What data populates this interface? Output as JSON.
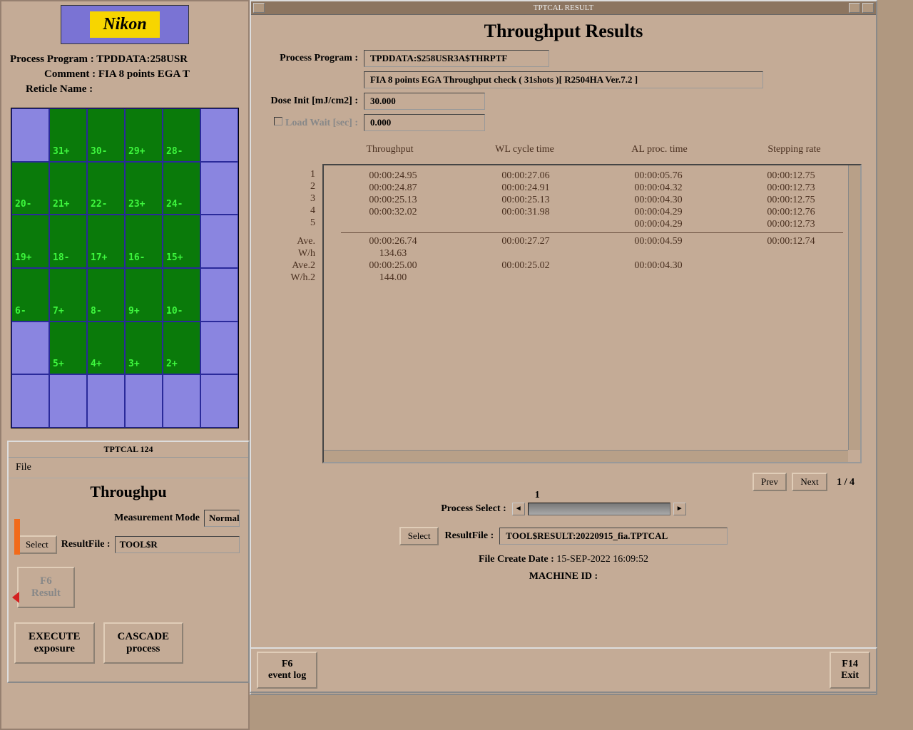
{
  "logo": "Nikon",
  "left": {
    "process_program_label": "Process Program :",
    "process_program_value": "TPDDATA:258USR",
    "comment_label": "Comment :",
    "comment_value": "FIA 8 points EGA T",
    "reticle_label": "Reticle Name :",
    "reticle_value": ""
  },
  "wafer": {
    "rows": [
      [
        "",
        "31+",
        "30-",
        "29+",
        "28-",
        ""
      ],
      [
        "20-",
        "21+",
        "22-",
        "23+",
        "24-",
        ""
      ],
      [
        "19+",
        "18-",
        "17+",
        "16-",
        "15+",
        ""
      ],
      [
        "6-",
        "7+",
        "8-",
        "9+",
        "10-",
        ""
      ],
      [
        "",
        "5+",
        "4+",
        "3+",
        "2+",
        ""
      ],
      [
        "",
        "",
        "",
        "",
        "",
        ""
      ]
    ],
    "green_map": [
      [
        false,
        true,
        true,
        true,
        true,
        false
      ],
      [
        true,
        true,
        true,
        true,
        true,
        false
      ],
      [
        true,
        true,
        true,
        true,
        true,
        false
      ],
      [
        true,
        true,
        true,
        true,
        true,
        false
      ],
      [
        false,
        true,
        true,
        true,
        true,
        false
      ],
      [
        false,
        false,
        false,
        false,
        false,
        false
      ]
    ]
  },
  "sub": {
    "title": "TPTCAL 124",
    "menu_file": "File",
    "heading": "Throughpu",
    "meas_mode_label": "Measurement Mode",
    "meas_mode_value": "Normal",
    "select_btn": "Select",
    "resultfile_label": "ResultFile :",
    "resultfile_value": "TOOL$R",
    "f6_1": "F6",
    "f6_2": "Result",
    "exec_1": "EXECUTE",
    "exec_2": "exposure",
    "casc_1": "CASCADE",
    "casc_2": "process"
  },
  "result": {
    "titlebar": "TPTCAL RESULT",
    "heading": "Throughput Results",
    "pp_label": "Process Program :",
    "pp_val1": "TPDDATA:$258USR3A$THRPTF",
    "pp_val2": "FIA 8 points EGA Throughput check ( 31shots )[ R2504HA Ver.7.2 ]",
    "dose_label": "Dose Init [mJ/cm2] :",
    "dose_val": "30.000",
    "load_label": "Load Wait [sec] :",
    "load_val": "0.000",
    "col_headers": [
      "Throughput",
      "WL cycle time",
      "AL proc. time",
      "Stepping rate"
    ],
    "rows": [
      {
        "n": "1",
        "tp": "00:00:24.95",
        "wl": "00:00:27.06",
        "al": "00:00:05.76",
        "sr": "00:00:12.75"
      },
      {
        "n": "2",
        "tp": "00:00:24.87",
        "wl": "00:00:24.91",
        "al": "00:00:04.32",
        "sr": "00:00:12.73"
      },
      {
        "n": "3",
        "tp": "00:00:25.13",
        "wl": "00:00:25.13",
        "al": "00:00:04.30",
        "sr": "00:00:12.75"
      },
      {
        "n": "4",
        "tp": "00:00:32.02",
        "wl": "00:00:31.98",
        "al": "00:00:04.29",
        "sr": "00:00:12.76"
      },
      {
        "n": "5",
        "tp": "",
        "wl": "",
        "al": "00:00:04.29",
        "sr": "00:00:12.73"
      }
    ],
    "summary": [
      {
        "n": "Ave.",
        "tp": "00:00:26.74",
        "wl": "00:00:27.27",
        "al": "00:00:04.59",
        "sr": "00:00:12.74"
      },
      {
        "n": "W/h",
        "tp": "134.63",
        "wl": "",
        "al": "",
        "sr": ""
      },
      {
        "n": "Ave.2",
        "tp": "00:00:25.00",
        "wl": "00:00:25.02",
        "al": "00:00:04.30",
        "sr": ""
      },
      {
        "n": "W/h.2",
        "tp": "144.00",
        "wl": "",
        "al": "",
        "sr": ""
      }
    ],
    "prev": "Prev",
    "next": "Next",
    "page": "1 / 4",
    "proc_select_label": "Process Select :",
    "proc_select_val": "1",
    "select_btn": "Select",
    "resultfile_label": "ResultFile :",
    "resultfile_val": "TOOL$RESULT:20220915_fia.TPTCAL",
    "file_date_label": "File Create Date :",
    "file_date_val": "15-SEP-2022 16:09:52",
    "machine_label": "MACHINE ID :",
    "machine_val": "",
    "f6_1": "F6",
    "f6_2": "event log",
    "f14_1": "F14",
    "f14_2": "Exit"
  }
}
